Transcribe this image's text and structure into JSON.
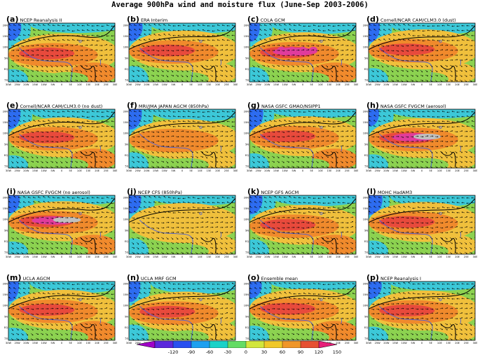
{
  "title": "Average 900hPa wind and moisture flux (June-Sep 2003-2006)",
  "panels": [
    {
      "letter": "(a)",
      "name": "NCEP Reanalysis II"
    },
    {
      "letter": "(b)",
      "name": "ERA Interim"
    },
    {
      "letter": "(c)",
      "name": "COLA GCM"
    },
    {
      "letter": "(d)",
      "name": "Cornell/NCAR CAM/CLM3.0 (dust)"
    },
    {
      "letter": "(e)",
      "name": "Cornell/NCAR CAM/CLM3.0 (no dust)"
    },
    {
      "letter": "(f)",
      "name": "MRI/JMA JAPAN AGCM (850hPa)"
    },
    {
      "letter": "(g)",
      "name": "NASA GSFC GMAO/NSIPP1"
    },
    {
      "letter": "(h)",
      "name": "NASA GSFC FVGCM (aerosol)"
    },
    {
      "letter": "(i)",
      "name": "NASA GSFC FVGCM (no aerosol)"
    },
    {
      "letter": "(j)",
      "name": "NCEP CFS (850hPa)"
    },
    {
      "letter": "(k)",
      "name": "NCEP GFS AGCM"
    },
    {
      "letter": "(l)",
      "name": "MOHC HadAM3"
    },
    {
      "letter": "(m)",
      "name": "UCLA AGCM"
    },
    {
      "letter": "(n)",
      "name": "UCLA MRF GCM"
    },
    {
      "letter": "(o)",
      "name": "Ensemble mean"
    },
    {
      "letter": "(p)",
      "name": "NCEP Reanalysis I"
    }
  ],
  "lat_ticks": [
    "20N",
    "15N",
    "10N",
    "5N",
    "EQ",
    "5S"
  ],
  "lon_ticks": [
    "30W",
    "25W",
    "20W",
    "15W",
    "10W",
    "5W",
    "0",
    "5E",
    "10E",
    "15E",
    "20E",
    "25E",
    "30E"
  ],
  "colorbar": {
    "ticks": [
      "-120",
      "-90",
      "-60",
      "-30",
      "0",
      "30",
      "60",
      "90",
      "120",
      "150"
    ],
    "colors": [
      "#a000c8",
      "#5a28dc",
      "#2850f0",
      "#1ea0f0",
      "#19d2c8",
      "#64dc64",
      "#d2e63c",
      "#f0c828",
      "#f09628",
      "#e65032",
      "#e61e78"
    ]
  },
  "palette": {
    "low": "#2d6cf0",
    "mid_low": "#3cc8d8",
    "mid": "#8cd250",
    "mid_high": "#f0c03c",
    "high": "#f08a2c",
    "very_high": "#e84a3c",
    "extreme": "#e03c9c",
    "null": "#c0c0c0"
  }
}
